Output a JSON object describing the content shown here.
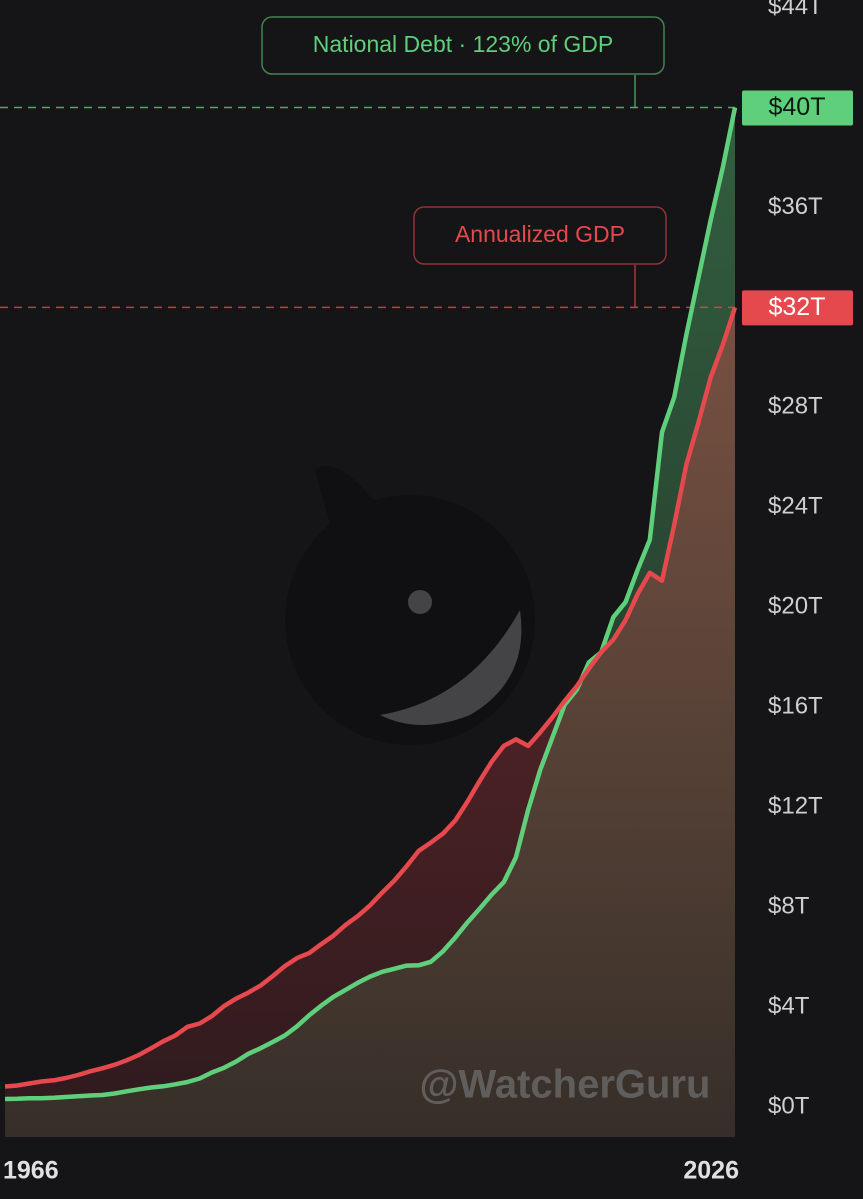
{
  "chart_data": {
    "type": "line",
    "x": [
      1966,
      1967,
      1968,
      1969,
      1970,
      1971,
      1972,
      1973,
      1974,
      1975,
      1976,
      1977,
      1978,
      1979,
      1980,
      1981,
      1982,
      1983,
      1984,
      1985,
      1986,
      1987,
      1988,
      1989,
      1990,
      1991,
      1992,
      1993,
      1994,
      1995,
      1996,
      1997,
      1998,
      1999,
      2000,
      2001,
      2002,
      2003,
      2004,
      2005,
      2006,
      2007,
      2008,
      2009,
      2010,
      2011,
      2012,
      2013,
      2014,
      2015,
      2016,
      2017,
      2018,
      2019,
      2020,
      2021,
      2022,
      2023,
      2024,
      2025,
      2026
    ],
    "xlim": [
      1966,
      2026
    ],
    "xticks": [
      1966,
      2026
    ],
    "ylim": [
      -1.2,
      44.3
    ],
    "yticks": [
      {
        "value": 0,
        "label": "$0T"
      },
      {
        "value": 4,
        "label": "$4T"
      },
      {
        "value": 8,
        "label": "$8T"
      },
      {
        "value": 12,
        "label": "$12T"
      },
      {
        "value": 16,
        "label": "$16T"
      },
      {
        "value": 20,
        "label": "$20T"
      },
      {
        "value": 24,
        "label": "$24T"
      },
      {
        "value": 28,
        "label": "$28T"
      },
      {
        "value": 32,
        "label": "$32T"
      },
      {
        "value": 36,
        "label": "$36T"
      },
      {
        "value": 40,
        "label": "$40T"
      },
      {
        "value": 44,
        "label": "$44T"
      }
    ],
    "series": [
      {
        "name": "National Debt · 123% of GDP",
        "color": "#5fcf7c",
        "values": [
          0.32,
          0.33,
          0.35,
          0.35,
          0.37,
          0.4,
          0.43,
          0.46,
          0.48,
          0.54,
          0.63,
          0.71,
          0.78,
          0.83,
          0.91,
          1.0,
          1.14,
          1.38,
          1.57,
          1.82,
          2.13,
          2.35,
          2.6,
          2.86,
          3.23,
          3.67,
          4.06,
          4.41,
          4.69,
          4.97,
          5.22,
          5.41,
          5.53,
          5.66,
          5.67,
          5.81,
          6.23,
          6.78,
          7.38,
          7.93,
          8.5,
          9.0,
          10.0,
          11.9,
          13.5,
          14.8,
          16.1,
          16.7,
          17.8,
          18.2,
          19.6,
          20.2,
          21.5,
          22.7,
          27.0,
          28.4,
          30.9,
          33.2,
          35.5,
          37.6,
          40.0
        ],
        "value_labels": [
          null,
          null,
          null,
          null,
          null,
          null,
          null,
          null,
          null,
          null,
          null,
          null,
          null,
          null,
          null,
          null,
          null,
          null,
          null,
          null,
          null,
          null,
          null,
          null,
          null,
          null,
          null,
          null,
          null,
          null,
          null,
          null,
          null,
          null,
          null,
          null,
          null,
          null,
          null,
          null,
          null,
          null,
          null,
          null,
          null,
          null,
          null,
          null,
          null,
          null,
          null,
          null,
          null,
          null,
          null,
          null,
          null,
          null,
          null,
          null,
          "$40T"
        ]
      },
      {
        "name": "Annualized GDP",
        "color": "#e5484d",
        "values": [
          0.82,
          0.86,
          0.94,
          1.02,
          1.07,
          1.16,
          1.28,
          1.43,
          1.55,
          1.69,
          1.87,
          2.08,
          2.35,
          2.63,
          2.86,
          3.21,
          3.34,
          3.64,
          4.04,
          4.34,
          4.58,
          4.86,
          5.24,
          5.64,
          5.96,
          6.16,
          6.52,
          6.86,
          7.29,
          7.64,
          8.07,
          8.58,
          9.06,
          9.63,
          10.25,
          10.58,
          10.94,
          11.46,
          12.21,
          13.04,
          13.82,
          14.45,
          14.71,
          14.45,
          15.0,
          15.6,
          16.25,
          16.84,
          17.55,
          18.21,
          18.7,
          19.48,
          20.53,
          21.38,
          21.06,
          23.3,
          25.7,
          27.4,
          29.2,
          30.5,
          32.0
        ],
        "value_labels": [
          null,
          null,
          null,
          null,
          null,
          null,
          null,
          null,
          null,
          null,
          null,
          null,
          null,
          null,
          null,
          null,
          null,
          null,
          null,
          null,
          null,
          null,
          null,
          null,
          null,
          null,
          null,
          null,
          null,
          null,
          null,
          null,
          null,
          null,
          null,
          null,
          null,
          null,
          null,
          null,
          null,
          null,
          null,
          null,
          null,
          null,
          null,
          null,
          null,
          null,
          null,
          null,
          null,
          null,
          null,
          null,
          null,
          null,
          null,
          null,
          "$32T"
        ]
      }
    ],
    "watermark": "@WatcherGuru"
  }
}
